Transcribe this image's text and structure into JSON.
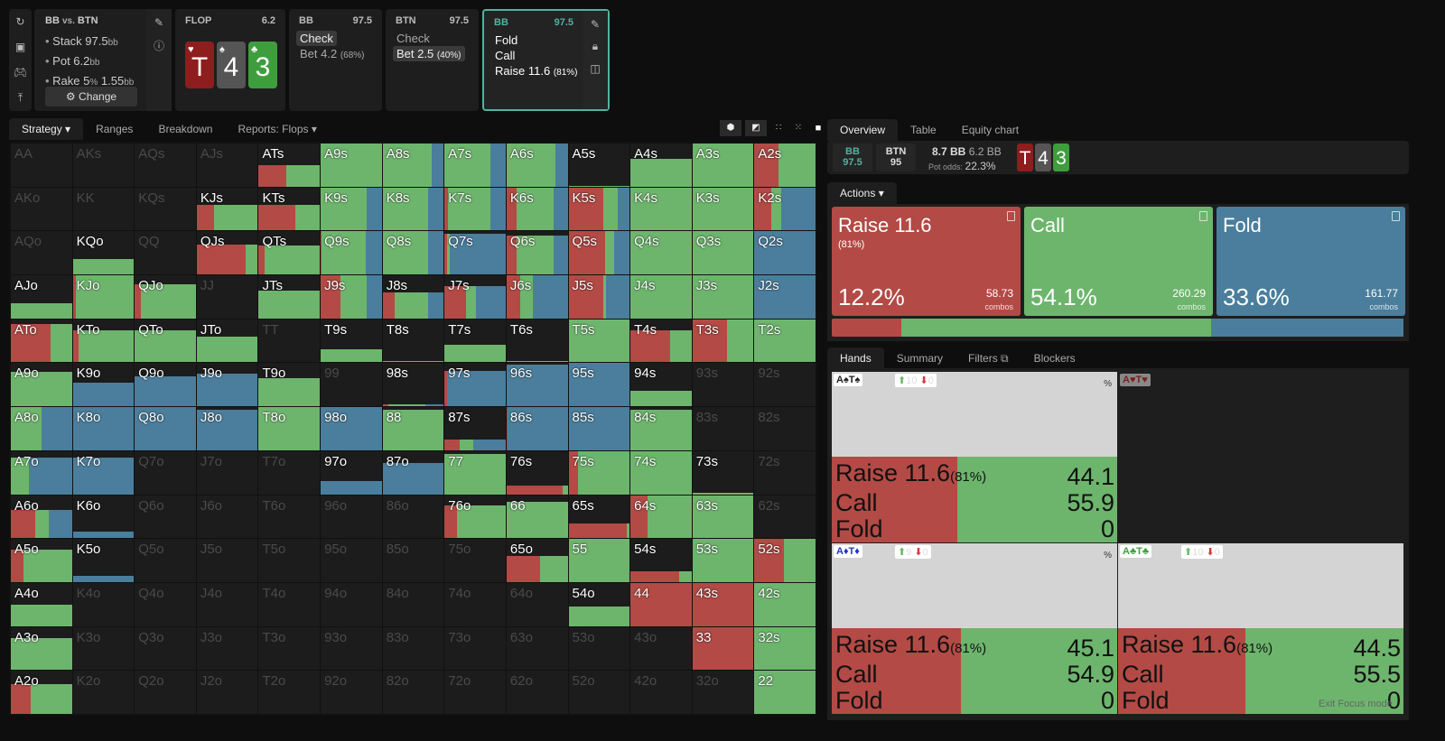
{
  "colors": {
    "raise": "#b34a45",
    "call": "#6db56d",
    "fold": "#4a7e9c",
    "accent": "#4fb3a0"
  },
  "left_icons": [
    "refresh-icon",
    "save-icon",
    "gamepad-icon",
    "collapse-icon"
  ],
  "info": {
    "title_a": "BB",
    "vs": "vs.",
    "title_b": "BTN",
    "stack": "Stack 97.5",
    "pot": "Pot 6.2",
    "rake": "Rake 5",
    "rake_pct": "%",
    "rake_val": "1.55",
    "bb": "bb",
    "change": "Change"
  },
  "flop": {
    "label": "FLOP",
    "pot": "6.2",
    "cards": [
      {
        "rank": "T",
        "suit": "♥",
        "color": "#8e1d1d"
      },
      {
        "rank": "4",
        "suit": "♠",
        "color": "#555555"
      },
      {
        "rank": "3",
        "suit": "♣",
        "color": "#3e9e3e"
      }
    ]
  },
  "nodes": [
    {
      "player": "BB",
      "stack": "97.5",
      "actions": [
        {
          "label": "Check",
          "sel": true
        },
        {
          "label": "Bet 4.2",
          "pct": "(68%)"
        }
      ]
    },
    {
      "player": "BTN",
      "stack": "97.5",
      "actions": [
        {
          "label": "Check"
        },
        {
          "label": "Bet 2.5",
          "pct": "(40%)",
          "sel": true
        }
      ]
    },
    {
      "player": "BB",
      "stack": "97.5",
      "actions": [
        {
          "label": "Fold"
        },
        {
          "label": "Call"
        },
        {
          "label": "Raise 11.6",
          "pct": "(81%)"
        }
      ]
    }
  ],
  "grid_tabs": [
    "Strategy",
    "Ranges",
    "Breakdown",
    "Reports: Flops"
  ],
  "grid": [
    [
      [
        "AA",
        0
      ],
      [
        "AKs",
        0
      ],
      [
        "AQs",
        0
      ],
      [
        "AJs",
        0
      ],
      [
        "ATs",
        0.5,
        0.45,
        0.55,
        0
      ],
      [
        "A9s",
        1,
        0,
        1,
        0
      ],
      [
        "A8s",
        1,
        0,
        0.8,
        0.2
      ],
      [
        "A7s",
        1,
        0,
        0.75,
        0.25
      ],
      [
        "A6s",
        1,
        0,
        0.8,
        0.2
      ],
      [
        "A5s",
        0.02,
        0,
        1,
        0
      ],
      [
        "A4s",
        0.65,
        0,
        1,
        0
      ],
      [
        "A3s",
        1,
        0,
        1,
        0
      ],
      [
        "A2s",
        1,
        0.4,
        0.6,
        0
      ]
    ],
    [
      [
        "AKo",
        0
      ],
      [
        "KK",
        0
      ],
      [
        "KQs",
        0
      ],
      [
        "KJs",
        0.6,
        0.28,
        0.72,
        0
      ],
      [
        "KTs",
        0.6,
        0.6,
        0.4,
        0
      ],
      [
        "K9s",
        1,
        0,
        0.75,
        0.25
      ],
      [
        "K8s",
        1,
        0,
        0.75,
        0.25
      ],
      [
        "K7s",
        1,
        0.05,
        0.7,
        0.25
      ],
      [
        "K6s",
        1,
        0.17,
        0.6,
        0.23
      ],
      [
        "K5s",
        1,
        0.57,
        0.23,
        0.2
      ],
      [
        "K4s",
        1,
        0,
        1,
        0
      ],
      [
        "K3s",
        1,
        0,
        1,
        0
      ],
      [
        "K2s",
        1,
        0.27,
        0.17,
        0.56
      ]
    ],
    [
      [
        "AQo",
        0
      ],
      [
        "KQo",
        0.35,
        0,
        1,
        0
      ],
      [
        "QQ",
        0
      ],
      [
        "QJs",
        0.7,
        0.8,
        0.2,
        0
      ],
      [
        "QTs",
        0.68,
        0.1,
        0.9,
        0
      ],
      [
        "Q9s",
        1,
        0.02,
        0.72,
        0.26
      ],
      [
        "Q8s",
        1,
        0,
        0.75,
        0.25
      ],
      [
        "Q7s",
        0.95,
        0.04,
        0.05,
        0.91
      ],
      [
        "Q6s",
        0.9,
        0.17,
        0.6,
        0.23
      ],
      [
        "Q5s",
        1,
        0.6,
        0.15,
        0.25
      ],
      [
        "Q4s",
        1,
        0,
        1,
        0
      ],
      [
        "Q3s",
        1,
        0,
        1,
        0
      ],
      [
        "Q2s",
        1,
        0,
        0,
        1
      ]
    ],
    [
      [
        "AJo",
        0.35,
        0,
        1,
        0
      ],
      [
        "KJo",
        1,
        0.05,
        0.95,
        0
      ],
      [
        "QJo",
        0.8,
        0.1,
        0.9,
        0
      ],
      [
        "JJ",
        0
      ],
      [
        "JTs",
        0.65,
        0,
        1,
        0
      ],
      [
        "J9s",
        1,
        0.33,
        0.42,
        0.25
      ],
      [
        "J8s",
        0.6,
        0.2,
        0.55,
        0.25
      ],
      [
        "J7s",
        0.75,
        0.35,
        0.17,
        0.48
      ],
      [
        "J6s",
        1,
        0.23,
        0.2,
        0.57
      ],
      [
        "J5s",
        1,
        0.57,
        0.05,
        0.38
      ],
      [
        "J4s",
        1,
        0,
        1,
        0
      ],
      [
        "J3s",
        1,
        0,
        1,
        0
      ],
      [
        "J2s",
        1,
        0,
        0,
        1
      ]
    ],
    [
      [
        "ATo",
        0.9,
        0.65,
        0.35,
        0
      ],
      [
        "KTo",
        0.75,
        0.1,
        0.9,
        0
      ],
      [
        "QTo",
        0.75,
        0,
        1,
        0
      ],
      [
        "JTo",
        0.6,
        0,
        1,
        0
      ],
      [
        "TT",
        0
      ],
      [
        "T9s",
        0.3,
        0,
        1,
        0
      ],
      [
        "T8s",
        0.03,
        0,
        1,
        0
      ],
      [
        "T7s",
        0.4,
        0,
        1,
        0
      ],
      [
        "T6s",
        0.03,
        0,
        1,
        0
      ],
      [
        "T5s",
        1,
        0,
        1,
        0
      ],
      [
        "T4s",
        0.75,
        0.65,
        0.35,
        0
      ],
      [
        "T3s",
        1,
        0.57,
        0.43,
        0
      ],
      [
        "T2s",
        1,
        0,
        1,
        0
      ]
    ],
    [
      [
        "A9o",
        0.8,
        0,
        1,
        0
      ],
      [
        "K9o",
        0.55,
        0,
        0,
        1
      ],
      [
        "Q9o",
        0.7,
        0,
        0,
        1
      ],
      [
        "J9o",
        0.75,
        0,
        0,
        1
      ],
      [
        "T9o",
        0.65,
        0,
        1,
        0
      ],
      [
        "99",
        0
      ],
      [
        "98s",
        0.04,
        0.1,
        0.6,
        0.3
      ],
      [
        "97s",
        0.82,
        0.04,
        0,
        0.96
      ],
      [
        "96s",
        0.97,
        0,
        0,
        1
      ],
      [
        "95s",
        1,
        0,
        0,
        1
      ],
      [
        "94s",
        0.35,
        0,
        1,
        0
      ],
      [
        "93s",
        0
      ],
      [
        "92s",
        0
      ]
    ],
    [
      [
        "A8o",
        1,
        0,
        0.5,
        0.5
      ],
      [
        "K8o",
        1,
        0,
        0,
        1
      ],
      [
        "Q8o",
        1,
        0,
        0,
        1
      ],
      [
        "J8o",
        0.95,
        0,
        0,
        1
      ],
      [
        "T8o",
        1,
        0,
        1,
        0
      ],
      [
        "98o",
        1,
        0,
        0,
        1
      ],
      [
        "88",
        0.95,
        0,
        1,
        0
      ],
      [
        "87s",
        0.25,
        0.25,
        0.22,
        0.53
      ],
      [
        "86s",
        1,
        0.02,
        0,
        0.98
      ],
      [
        "85s",
        1,
        0,
        0,
        1
      ],
      [
        "84s",
        0.95,
        0,
        1,
        0
      ],
      [
        "83s",
        0
      ],
      [
        "82s",
        0
      ]
    ],
    [
      [
        "A7o",
        0.85,
        0,
        0.3,
        0.7
      ],
      [
        "K7o",
        0.85,
        0,
        0,
        1
      ],
      [
        "Q7o",
        0
      ],
      [
        "J7o",
        0
      ],
      [
        "T7o",
        0
      ],
      [
        "97o",
        0.3,
        0,
        0,
        1
      ],
      [
        "87o",
        0.72,
        0,
        0,
        1
      ],
      [
        "77",
        0.93,
        0,
        1,
        0
      ],
      [
        "76s",
        0.2,
        0.92,
        0.08,
        0
      ],
      [
        "75s",
        1,
        0.15,
        0.85,
        0
      ],
      [
        "74s",
        1,
        0,
        1,
        0
      ],
      [
        "73s",
        0.03,
        0,
        1,
        0
      ],
      [
        "72s",
        0
      ]
    ],
    [
      [
        "A6o",
        0.65,
        0.4,
        0.22,
        0.38
      ],
      [
        "K6o",
        0.15,
        0,
        0,
        1
      ],
      [
        "Q6o",
        0
      ],
      [
        "J6o",
        0
      ],
      [
        "T6o",
        0
      ],
      [
        "96o",
        0
      ],
      [
        "86o",
        0
      ],
      [
        "76o",
        0.75,
        0.2,
        0.8,
        0
      ],
      [
        "66",
        0.85,
        0,
        1,
        0
      ],
      [
        "65s",
        0.35,
        0.95,
        0.05,
        0
      ],
      [
        "64s",
        1,
        0.28,
        0.72,
        0
      ],
      [
        "63s",
        1,
        0,
        1,
        0
      ],
      [
        "62s",
        0
      ]
    ],
    [
      [
        "A5o",
        0.75,
        0.2,
        0.8,
        0
      ],
      [
        "K5o",
        0.15,
        0,
        0,
        1
      ],
      [
        "Q5o",
        0
      ],
      [
        "J5o",
        0
      ],
      [
        "T5o",
        0
      ],
      [
        "95o",
        0
      ],
      [
        "85o",
        0
      ],
      [
        "75o",
        0
      ],
      [
        "65o",
        0.6,
        0.55,
        0.45,
        0
      ],
      [
        "55",
        1,
        0,
        1,
        0
      ],
      [
        "54s",
        0.25,
        0.8,
        0.2,
        0
      ],
      [
        "53s",
        1,
        0,
        1,
        0
      ],
      [
        "52s",
        1,
        0.48,
        0.52,
        0
      ]
    ],
    [
      [
        "A4o",
        0.5,
        0,
        1,
        0
      ],
      [
        "K4o",
        0
      ],
      [
        "Q4o",
        0
      ],
      [
        "J4o",
        0
      ],
      [
        "T4o",
        0
      ],
      [
        "94o",
        0
      ],
      [
        "84o",
        0
      ],
      [
        "74o",
        0
      ],
      [
        "64o",
        0
      ],
      [
        "54o",
        0.45,
        0,
        1,
        0
      ],
      [
        "44",
        1,
        1,
        0,
        0
      ],
      [
        "43s",
        1,
        1,
        0,
        0
      ],
      [
        "42s",
        1,
        0,
        1,
        0
      ]
    ],
    [
      [
        "A3o",
        0.75,
        0,
        1,
        0
      ],
      [
        "K3o",
        0
      ],
      [
        "Q3o",
        0
      ],
      [
        "J3o",
        0
      ],
      [
        "T3o",
        0
      ],
      [
        "93o",
        0
      ],
      [
        "83o",
        0
      ],
      [
        "73o",
        0
      ],
      [
        "63o",
        0
      ],
      [
        "53o",
        0
      ],
      [
        "43o",
        0
      ],
      [
        "33",
        1,
        1,
        0,
        0
      ],
      [
        "32s",
        1,
        0,
        1,
        0
      ]
    ],
    [
      [
        "A2o",
        0.7,
        0.33,
        0.67,
        0
      ],
      [
        "K2o",
        0
      ],
      [
        "Q2o",
        0
      ],
      [
        "J2o",
        0
      ],
      [
        "T2o",
        0
      ],
      [
        "92o",
        0
      ],
      [
        "82o",
        0
      ],
      [
        "72o",
        0
      ],
      [
        "62o",
        0
      ],
      [
        "52o",
        0
      ],
      [
        "42o",
        0
      ],
      [
        "32o",
        0
      ],
      [
        "22",
        1,
        0,
        1,
        0
      ]
    ]
  ],
  "right_tabs": [
    "Overview",
    "Table",
    "Equity chart"
  ],
  "overview": {
    "p1": "BB",
    "p1_stack": "97.5",
    "p2": "BTN",
    "p2_stack": "95",
    "bet": "8.7 BB",
    "pot": "6.2 BB",
    "odds_label": "Pot odds:",
    "odds": "22.3%"
  },
  "actions_label": "Actions",
  "action_cards": [
    {
      "name": "Raise 11.6",
      "sub": "(81%)",
      "pct": "12.2%",
      "combos": "58.73",
      "combos_label": "combos"
    },
    {
      "name": "Call",
      "pct": "54.1%",
      "combos": "260.29",
      "combos_label": "combos"
    },
    {
      "name": "Fold",
      "pct": "33.6%",
      "combos": "161.77",
      "combos_label": "combos"
    }
  ],
  "action_bar": [
    12.2,
    54.1,
    33.6
  ],
  "hands_tabs": [
    "Hands",
    "Summary",
    "Filters",
    "Blockers"
  ],
  "hands": [
    {
      "combo": "A♠T♠",
      "combo_color": "#222222",
      "up": "10",
      "down": "0",
      "pct": "%",
      "raise": 44.1,
      "call": 55.9,
      "fold": 0,
      "raise_label": "Raise 11.6",
      "raise_sub": "(81%)",
      "call_label": "Call",
      "fold_label": "Fold",
      "raise_val": "44.1",
      "call_val": "55.9",
      "fold_val": "0"
    },
    {
      "combo": "A♥T♥",
      "combo_color": "#7a1f1f",
      "blocked": true
    },
    {
      "combo": "A♦T♦",
      "combo_color": "#2233cc",
      "up": "9",
      "down": "0",
      "pct": "%",
      "raise": 45.1,
      "call": 54.9,
      "fold": 0,
      "raise_label": "Raise 11.6",
      "raise_sub": "(81%)",
      "call_label": "Call",
      "fold_label": "Fold",
      "raise_val": "45.1",
      "call_val": "54.9",
      "fold_val": "0"
    },
    {
      "combo": "A♣T♣",
      "combo_color": "#3e9e3e",
      "up": "10",
      "down": "0",
      "raise": 44.5,
      "call": 55.5,
      "fold": 0,
      "raise_label": "Raise 11.6",
      "raise_sub": "(81%)",
      "call_label": "Call",
      "fold_label": "Fold",
      "raise_val": "44.5",
      "call_val": "55.5",
      "fold_val": "0"
    }
  ],
  "exit_focus": "Exit Focus mode"
}
